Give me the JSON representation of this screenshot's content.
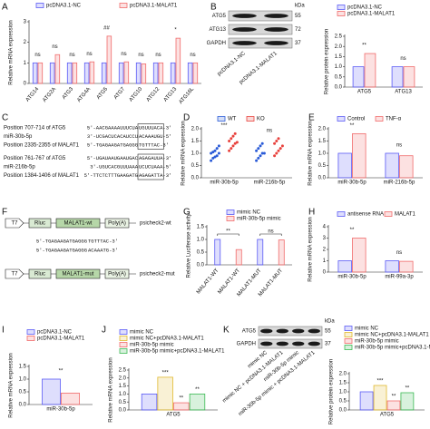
{
  "chart_data": [
    {
      "type": "bar",
      "panel": "A",
      "ylabel": "Relative mRNA expression",
      "categories": [
        "ATG14",
        "ATG2A",
        "ATG3",
        "ATG4A",
        "ATG5",
        "ATG7",
        "ATG10",
        "ATG12",
        "ATG13",
        "ATG16L"
      ],
      "series": [
        {
          "name": "pcDNA3.1-NC",
          "color": "#5b5bf5",
          "values": [
            1,
            1,
            1,
            1,
            1,
            1,
            1,
            1,
            1,
            1
          ]
        },
        {
          "name": "pcDNA3.1-MALAT1",
          "color": "#f06b6b",
          "values": [
            1.0,
            1.4,
            1.0,
            1.05,
            2.3,
            1.05,
            0.95,
            1.0,
            2.2,
            1.0
          ]
        }
      ],
      "sig": [
        "ns",
        "ns",
        "ns",
        "ns",
        "##",
        "ns",
        "ns",
        "ns",
        "*",
        "ns"
      ],
      "ylim": [
        0,
        3
      ],
      "yticks": [
        0,
        1,
        2,
        3
      ]
    },
    {
      "type": "bar",
      "ylabel": "Relative protein expression",
      "categories": [
        "ATG5",
        "ATG13"
      ],
      "series": [
        {
          "name": "pcDNA3.1-NC",
          "color": "#5b5bf5",
          "values": [
            1.0,
            1.0
          ]
        },
        {
          "name": "pcDNA3.1-MALAT1",
          "color": "#f06b6b",
          "values": [
            1.65,
            1.0
          ]
        }
      ],
      "sig": [
        "**",
        "ns"
      ],
      "ylim": [
        0,
        2.5
      ],
      "yticks": [
        {
          "value": 0,
          "label": "0.0"
        },
        {
          "value": 0.5,
          "label": "0.5"
        },
        {
          "value": 1,
          "label": "1.0"
        },
        {
          "value": 1.5,
          "label": "1.5"
        },
        {
          "value": 2,
          "label": "2.0"
        },
        {
          "value": 2.5,
          "label": "2.5"
        }
      ]
    },
    {
      "type": "strip",
      "panel": "D",
      "ylabel": "Relative mRNA expression",
      "categories": [
        "miR-30b-5p",
        "miR-216b-5p"
      ],
      "series": [
        {
          "name": "WT",
          "color": "#2a5bd7",
          "values": [
            [
              0.7,
              0.8,
              0.85,
              0.9,
              1.0,
              1.0,
              1.05,
              1.1,
              1.2,
              1.3
            ],
            [
              0.7,
              0.8,
              0.9,
              1.0,
              1.0,
              1.1,
              1.2,
              1.3,
              1.4
            ]
          ]
        },
        {
          "name": "KO",
          "color": "#e8413c",
          "values": [
            [
              1.1,
              1.2,
              1.3,
              1.4,
              1.45,
              1.5,
              1.6,
              1.7,
              1.8
            ],
            [
              0.9,
              1.0,
              1.1,
              1.2,
              1.3,
              1.4,
              1.5,
              1.6
            ]
          ]
        }
      ],
      "sig": [
        "***",
        "ns"
      ],
      "ylim": [
        0,
        2
      ],
      "yticks": [
        {
          "value": 0,
          "label": "0.0"
        },
        {
          "value": 0.5,
          "label": "0.5"
        },
        {
          "value": 1,
          "label": "1.0"
        },
        {
          "value": 1.5,
          "label": "1.5"
        },
        {
          "value": 2,
          "label": "2.0"
        }
      ]
    },
    {
      "type": "bar",
      "panel": "E",
      "ylabel": "Relative mRNA expression",
      "categories": [
        "miR-30b-5p",
        "miR-216b-5p"
      ],
      "series": [
        {
          "name": "Control",
          "color": "#5b5bf5",
          "values": [
            1.0,
            1.0
          ]
        },
        {
          "name": "TNF-α",
          "color": "#f06b6b",
          "values": [
            1.8,
            0.9
          ]
        }
      ],
      "sig": [
        "**",
        "ns"
      ],
      "ylim": [
        0,
        2
      ],
      "yticks": [
        {
          "value": 0,
          "label": "0.0"
        },
        {
          "value": 0.5,
          "label": "0.5"
        },
        {
          "value": 1,
          "label": "1.0"
        },
        {
          "value": 1.5,
          "label": "1.5"
        },
        {
          "value": 2,
          "label": "2.0"
        }
      ]
    },
    {
      "type": "bar",
      "panel": "G",
      "ylabel": "Relative Luciferase activity",
      "categories": [
        "MALAT1-WT",
        "MALAT1-WT",
        "MALAT1-MUT",
        "MALAT1-MUT"
      ],
      "series": [
        {
          "name": "mimic NC",
          "color": "#5b5bf5",
          "values": [
            1.0,
            null,
            1.0,
            null
          ]
        },
        {
          "name": "miR-30b-5p mimic",
          "color": "#f06b6b",
          "values": [
            null,
            0.6,
            null,
            0.98
          ]
        }
      ],
      "sig": [
        "**",
        null,
        "ns",
        null
      ],
      "ylim": [
        0,
        1.5
      ],
      "yticks": [
        {
          "value": 0,
          "label": "0.0"
        },
        {
          "value": 0.5,
          "label": "0.5"
        },
        {
          "value": 1,
          "label": "1.0"
        },
        {
          "value": 1.5,
          "label": "1.5"
        }
      ]
    },
    {
      "type": "bar",
      "panel": "H",
      "ylabel": "Relative mRNA expression",
      "categories": [
        "miR-30b-5p",
        "miR-99a-3p"
      ],
      "series": [
        {
          "name": "antisense RNA",
          "color": "#5b5bf5",
          "values": [
            1.0,
            1.0
          ]
        },
        {
          "name": "MALAT1",
          "color": "#f06b6b",
          "values": [
            3.0,
            0.95
          ]
        }
      ],
      "sig": [
        "**",
        "ns"
      ],
      "ylim": [
        0,
        4
      ],
      "yticks": [
        0,
        1,
        2,
        3,
        4
      ]
    },
    {
      "type": "bar",
      "panel": "I",
      "ylabel": "Relative mRNA expression",
      "categories": [
        "miR-30b-5p"
      ],
      "series": [
        {
          "name": "pcDNA3.1-NC",
          "color": "#5b5bf5",
          "values": [
            1.0
          ]
        },
        {
          "name": "pcDNA3.1-MALAT1",
          "color": "#f06b6b",
          "values": [
            0.45
          ]
        }
      ],
      "sig": [
        "**"
      ],
      "ylim": [
        0,
        1.5
      ],
      "yticks": [
        {
          "value": 0,
          "label": "0.0"
        },
        {
          "value": 0.5,
          "label": "0.5"
        },
        {
          "value": 1,
          "label": "1.0"
        },
        {
          "value": 1.5,
          "label": "1.5"
        }
      ]
    },
    {
      "type": "bar",
      "panel": "J",
      "ylabel": "Relative mRNA expression",
      "categories": [
        "ATG5"
      ],
      "series": [
        {
          "name": "mimic NC",
          "color": "#5b5bf5",
          "values": [
            1.0
          ]
        },
        {
          "name": "mimic NC+pcDNA3.1-MALAT1",
          "color": "#e0b92e",
          "values": [
            2.05
          ],
          "sig": "***"
        },
        {
          "name": "miR-30b-5p mimic",
          "color": "#f06b6b",
          "values": [
            0.45
          ],
          "sig": "**"
        },
        {
          "name": "miR-30b-5p mimic+pcDNA3.1-MALAT1",
          "color": "#3cba54",
          "values": [
            1.0
          ],
          "sig": "**"
        }
      ],
      "ylim": [
        0,
        2.5
      ],
      "yticks": [
        {
          "value": 0,
          "label": "0.0"
        },
        {
          "value": 0.5,
          "label": "0.5"
        },
        {
          "value": 1,
          "label": "1.0"
        },
        {
          "value": 1.5,
          "label": "1.5"
        },
        {
          "value": 2,
          "label": "2.0"
        },
        {
          "value": 2.5,
          "label": "2.5"
        }
      ]
    },
    {
      "type": "bar",
      "ylabel": "Relative protein expression",
      "categories": [
        "ATG5"
      ],
      "series": [
        {
          "name": "mimic NC",
          "color": "#5b5bf5",
          "values": [
            1.0
          ]
        },
        {
          "name": "mimic NC+pcDNA3.1-MALAT1",
          "color": "#e0b92e",
          "values": [
            1.35
          ],
          "sig": "***"
        },
        {
          "name": "miR-30b-5p mimic",
          "color": "#f06b6b",
          "values": [
            0.5
          ],
          "sig": "**"
        },
        {
          "name": "miR-30b-5p mimic+pcDNA3.1-MALAT1",
          "color": "#3cba54",
          "values": [
            0.95
          ],
          "sig": "**"
        }
      ],
      "ylim": [
        0,
        2
      ],
      "yticks": [
        {
          "value": 0,
          "label": "0.0"
        },
        {
          "value": 0.5,
          "label": "0.5"
        },
        {
          "value": 1,
          "label": "1.0"
        },
        {
          "value": 1.5,
          "label": "1.5"
        },
        {
          "value": 2,
          "label": "2.0"
        }
      ]
    }
  ],
  "blots": [
    {
      "panel": "B",
      "unit": "kDa",
      "rows": [
        {
          "protein": "ATG5",
          "kda": 55
        },
        {
          "protein": "ATG13",
          "kda": 72
        },
        {
          "protein": "GAPDH",
          "kda": 37
        }
      ],
      "lanes": [
        "pcDNA3.1-NC",
        "pcDNA3.1-MALAT1"
      ]
    },
    {
      "panel": "K",
      "unit": "kDa",
      "rows": [
        {
          "protein": "ATG5",
          "kda": 55
        },
        {
          "protein": "GAPDH",
          "kda": 37
        }
      ],
      "lanes": [
        "mimic NC",
        "mimic NC + pcDNA3.1-MALAT1",
        "miR-30b-5p mimic",
        "miR-30b-5p mimic + pcDNA3.1-MALAT1"
      ]
    }
  ],
  "alignment": {
    "panel": "C",
    "rows": [
      {
        "label": "Position 707-714 of ATG5",
        "prefix": "5'-AACGAAAAUUUCUA",
        "seed": "UGUUUACA",
        "suffix": "-3'"
      },
      {
        "label": "miR-30b-5p",
        "prefix": "3'-UCGACUCACAUCCU",
        "seed": "ACAAAUGU",
        "suffix": "-5'"
      },
      {
        "label": "Position 2335-2355 of MALAT1",
        "prefix": "5'-TGAGAAGATGAGGG",
        "seed": "TGTTTAC",
        "suffix": "-3'"
      },
      {
        "label": "Position 761-767 of ATG5",
        "prefix": "5'-UGAUAAUGAAUGAC",
        "seed": "AGAGAUU",
        "suffix": "A-3'"
      },
      {
        "label": "miR-216b-5p",
        "prefix": "3'-UGUCACGUUUAAA",
        "seed": "UCUCUAAA",
        "suffix": "-5'"
      },
      {
        "label": "Position 1384-1406 of MALAT1",
        "prefix": "5'-TTCTCTTTGAAGATG",
        "seed": "AGAGATT",
        "suffix": "A-3'"
      }
    ]
  },
  "constructs": {
    "panel": "F",
    "vectors": [
      {
        "parts": [
          "T7",
          "Rluc",
          "MALAT1-wt",
          "Poly(A)"
        ],
        "name": "psicheck2-wt"
      },
      {
        "parts": [
          "T7",
          "Rluc",
          "MALAT1-mut",
          "Poly(A)"
        ],
        "name": "psicheck2-mut"
      }
    ],
    "sequences": [
      {
        "prefix": "5'-TGAGAAGATGAGGG",
        "seed": "TGTTTAC",
        "suffix": "-3'"
      },
      {
        "prefix": "5'-TGAGAAGATGAGGG",
        "seed": "ACAAATG",
        "suffix": "-3'"
      }
    ]
  }
}
